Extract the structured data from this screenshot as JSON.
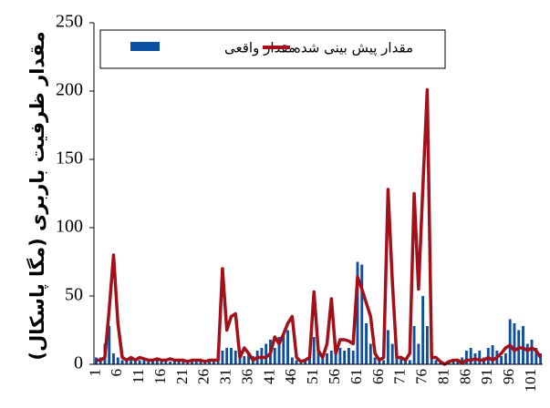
{
  "chart_data": {
    "type": "combo",
    "y_label": "مقدار ظرفیت باربری (مگا پاسکال)",
    "categories": [
      1,
      null,
      null,
      null,
      null,
      6,
      null,
      null,
      null,
      null,
      11,
      null,
      null,
      null,
      null,
      16,
      null,
      null,
      null,
      null,
      21,
      null,
      null,
      null,
      null,
      26,
      null,
      null,
      null,
      null,
      31,
      null,
      null,
      null,
      null,
      36,
      null,
      null,
      null,
      null,
      41,
      null,
      null,
      null,
      null,
      46,
      null,
      null,
      null,
      null,
      51,
      null,
      null,
      null,
      null,
      56,
      null,
      null,
      null,
      null,
      61,
      null,
      null,
      null,
      null,
      66,
      null,
      null,
      null,
      null,
      71,
      null,
      null,
      null,
      null,
      76,
      null,
      null,
      null,
      null,
      81,
      null,
      null,
      null,
      null,
      86,
      null,
      null,
      null,
      null,
      91,
      null,
      null,
      null,
      null,
      96,
      null,
      null,
      null,
      null,
      101,
      null,
      null
    ],
    "series": [
      {
        "name": "مقدار واقعی",
        "type": "bar",
        "color": "#0b4ea2",
        "values": [
          5,
          5,
          15,
          28,
          8,
          5,
          3,
          3,
          4,
          3,
          3,
          3,
          2,
          2,
          3,
          3,
          2,
          2,
          3,
          3,
          2,
          2,
          3,
          2,
          2,
          3,
          3,
          3,
          10,
          10,
          12,
          12,
          10,
          5,
          6,
          8,
          6,
          10,
          12,
          15,
          18,
          12,
          20,
          22,
          25,
          5,
          3,
          2,
          3,
          5,
          20,
          10,
          5,
          8,
          10,
          8,
          12,
          10,
          12,
          10,
          75,
          73,
          30,
          15,
          5,
          3,
          3,
          25,
          15,
          5,
          5,
          3,
          3,
          28,
          15,
          50,
          28,
          5,
          3,
          2,
          0,
          2,
          3,
          3,
          5,
          10,
          12,
          8,
          10,
          5,
          12,
          14,
          10,
          6,
          8,
          33,
          30,
          25,
          28,
          15,
          18,
          12,
          8
        ]
      },
      {
        "name": "مقدار پیش بینی شده",
        "type": "line",
        "color": "#a3101a",
        "values": [
          3,
          3,
          5,
          40,
          80,
          30,
          5,
          3,
          5,
          3,
          5,
          4,
          3,
          3,
          4,
          3,
          3,
          4,
          3,
          3,
          3,
          2,
          3,
          3,
          3,
          2,
          3,
          3,
          3,
          70,
          25,
          35,
          37,
          5,
          12,
          8,
          3,
          5,
          5,
          5,
          8,
          20,
          15,
          22,
          30,
          35,
          5,
          2,
          3,
          5,
          53,
          10,
          5,
          15,
          48,
          8,
          18,
          18,
          17,
          15,
          64,
          55,
          45,
          35,
          8,
          3,
          5,
          128,
          60,
          5,
          5,
          3,
          8,
          125,
          55,
          130,
          201,
          5,
          5,
          2,
          0,
          2,
          3,
          3,
          1,
          3,
          3,
          4,
          3,
          3,
          5,
          3,
          5,
          8,
          12,
          14,
          10,
          12,
          12,
          10,
          12,
          10,
          5
        ]
      }
    ],
    "ylim": [
      0,
      250
    ],
    "yticks": [
      0,
      50,
      100,
      150,
      200,
      250
    ],
    "grid": false
  }
}
